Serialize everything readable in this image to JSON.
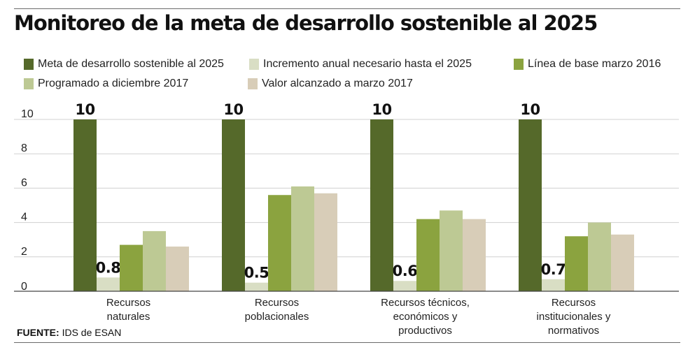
{
  "title": "Monitoreo de la meta de desarrollo sostenible al 2025",
  "source_label": "FUENTE:",
  "source_text": "IDS de ESAN",
  "colors": {
    "meta": "#55692a",
    "incremento": "#d9dec4",
    "linea_base": "#8ba33f",
    "programado": "#bdc994",
    "valor": "#d8cdb8"
  },
  "legend": [
    {
      "label": "Meta de desarrollo sostenible al 2025",
      "color": "#55692a"
    },
    {
      "label": "Incremento anual necesario hasta el 2025",
      "color": "#d9dec4"
    },
    {
      "label": "Línea de base  marzo 2016",
      "color": "#8ba33f"
    },
    {
      "label": "Programado a diciembre 2017",
      "color": "#bdc994"
    },
    {
      "label": "Valor alcanzado a marzo 2017",
      "color": "#d8cdb8"
    }
  ],
  "chart_data": {
    "type": "bar",
    "title": "Monitoreo de la meta de desarrollo sostenible al 2025",
    "categories": [
      [
        "Recursos",
        "naturales"
      ],
      [
        "Recursos",
        "poblacionales"
      ],
      [
        "Recursos técnicos,",
        "económicos y",
        "productivos"
      ],
      [
        "Recursos",
        "institucionales y",
        "normativos"
      ]
    ],
    "yticks": [
      "0",
      "2",
      "4",
      "6",
      "8",
      "10"
    ],
    "ylim": [
      0,
      10
    ],
    "grid": true,
    "legend_position": "top",
    "series": [
      {
        "name": "Meta de desarrollo sostenible al 2025",
        "values": [
          10,
          10,
          10,
          10
        ],
        "labels": [
          "10",
          "10",
          "10",
          "10"
        ]
      },
      {
        "name": "Incremento anual necesario hasta el 2025",
        "values": [
          0.8,
          0.5,
          0.6,
          0.7
        ],
        "labels": [
          "0.8",
          "0.5",
          "0.6",
          "0.7"
        ]
      },
      {
        "name": "Línea de base  marzo 2016",
        "values": [
          2.7,
          5.6,
          4.2,
          3.2
        ]
      },
      {
        "name": "Programado a diciembre 2017",
        "values": [
          3.5,
          6.1,
          4.7,
          4.0
        ]
      },
      {
        "name": "Valor alcanzado a marzo 2017",
        "values": [
          2.6,
          5.7,
          4.2,
          3.3
        ]
      }
    ]
  }
}
